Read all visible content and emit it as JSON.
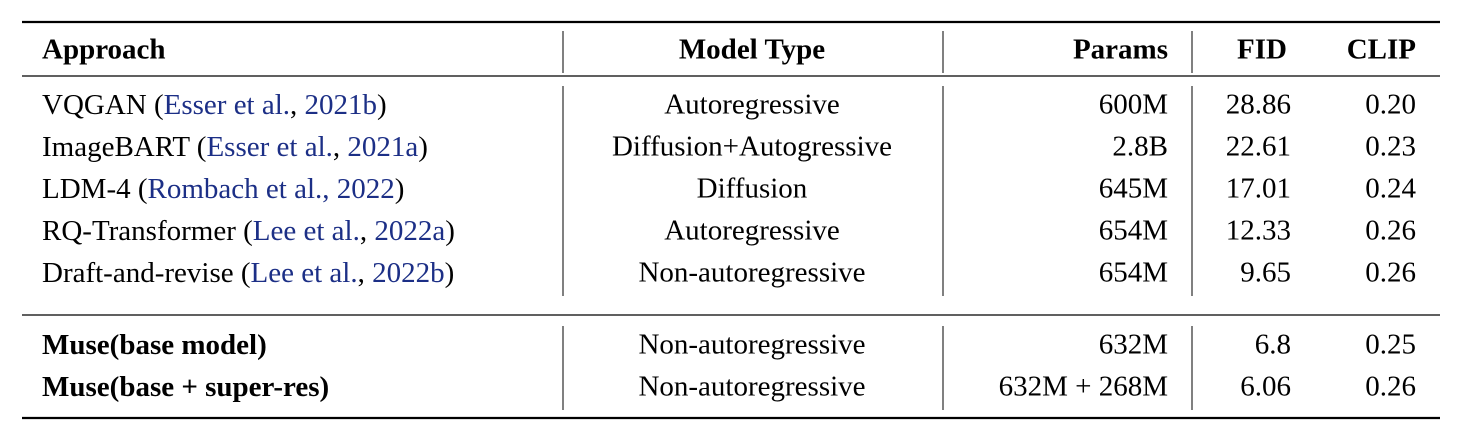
{
  "table": {
    "header": [
      "Approach",
      "Model Type",
      "Params",
      "FID",
      "CLIP"
    ],
    "groups": [
      [
        {
          "approach": [
            {
              "text": "VQGAN ("
            },
            {
              "text": "Esser et al.",
              "link": true
            },
            {
              "text": ", "
            },
            {
              "text": "2021b",
              "link": true
            },
            {
              "text": ")"
            }
          ],
          "cells": [
            "Autoregressive",
            "600M",
            "28.86",
            "0.20"
          ]
        },
        {
          "approach": [
            {
              "text": "ImageBART ("
            },
            {
              "text": "Esser et al.",
              "link": true
            },
            {
              "text": ", "
            },
            {
              "text": "2021a",
              "link": true
            },
            {
              "text": ")"
            }
          ],
          "cells": [
            "Diffusion+Autogressive",
            "2.8B",
            "22.61",
            "0.23"
          ]
        },
        {
          "approach": [
            {
              "text": "LDM-4 ("
            },
            {
              "text": "Rombach et al., 2022",
              "link": true
            },
            {
              "text": ")"
            }
          ],
          "cells": [
            "Diffusion",
            "645M",
            "17.01",
            "0.24"
          ]
        },
        {
          "approach": [
            {
              "text": "RQ-Transformer ("
            },
            {
              "text": "Lee et al.",
              "link": true
            },
            {
              "text": ", "
            },
            {
              "text": "2022a",
              "link": true
            },
            {
              "text": ")"
            }
          ],
          "cells": [
            "Autoregressive",
            "654M",
            "12.33",
            "0.26"
          ]
        },
        {
          "approach": [
            {
              "text": "Draft-and-revise ("
            },
            {
              "text": "Lee et al.",
              "link": true
            },
            {
              "text": ", "
            },
            {
              "text": "2022b",
              "link": true
            },
            {
              "text": ")"
            }
          ],
          "cells": [
            "Non-autoregressive",
            "654M",
            "9.65",
            "0.26"
          ]
        }
      ],
      [
        {
          "approach": [
            {
              "text": "Muse(base model)",
              "bold": true
            }
          ],
          "cells": [
            "Non-autoregressive",
            "632M",
            "6.8",
            "0.25"
          ]
        },
        {
          "approach": [
            {
              "text": "Muse(base + super-res)",
              "bold": true
            }
          ],
          "cells": [
            "Non-autoregressive",
            "632M + 268M",
            "6.06",
            "0.26"
          ]
        }
      ]
    ]
  }
}
